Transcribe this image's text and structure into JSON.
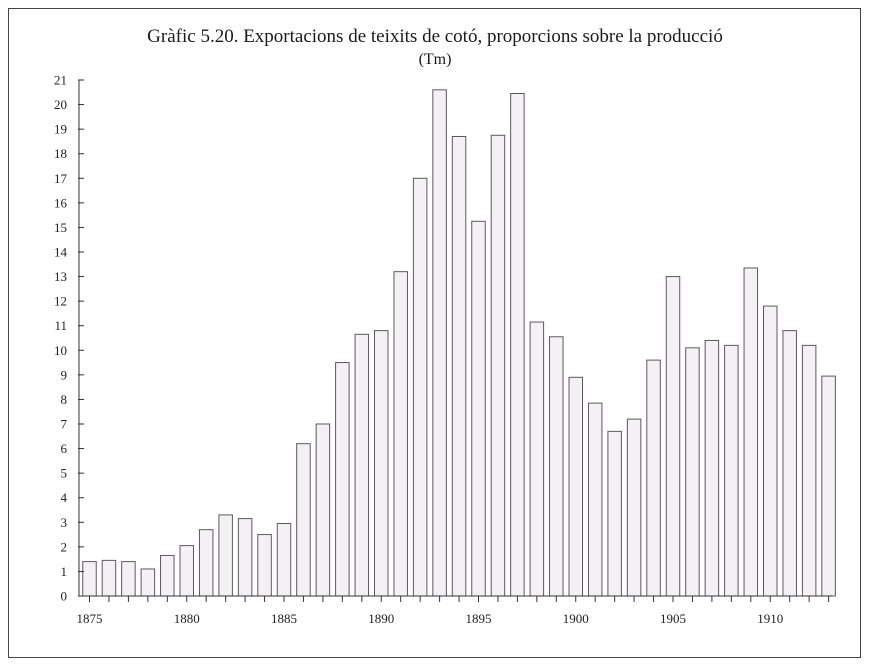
{
  "chart_data": {
    "type": "bar",
    "title": "Gràfic 5.20. Exportacions de teixits de cotó, proporcions sobre la producció",
    "subtitle": "(Tm)",
    "xlabel": "",
    "ylabel": "",
    "ylim": [
      0,
      21
    ],
    "yticks": [
      0,
      1,
      2,
      3,
      4,
      5,
      6,
      7,
      8,
      9,
      10,
      11,
      12,
      13,
      14,
      15,
      16,
      17,
      18,
      19,
      20,
      21
    ],
    "xtick_labels": [
      "1875",
      "1880",
      "1885",
      "1890",
      "1895",
      "1900",
      "1905",
      "1910"
    ],
    "grid": false,
    "categories": [
      1875,
      1876,
      1877,
      1878,
      1879,
      1880,
      1881,
      1882,
      1883,
      1884,
      1885,
      1886,
      1887,
      1888,
      1889,
      1890,
      1891,
      1892,
      1893,
      1894,
      1895,
      1896,
      1897,
      1898,
      1899,
      1900,
      1901,
      1902,
      1903,
      1904,
      1905,
      1906,
      1907,
      1908,
      1909,
      1910,
      1911,
      1912,
      1913
    ],
    "values": [
      1.4,
      1.45,
      1.4,
      1.1,
      1.65,
      2.05,
      2.7,
      3.3,
      3.15,
      2.5,
      2.95,
      6.2,
      7.0,
      9.5,
      10.65,
      10.8,
      13.2,
      17.0,
      20.6,
      18.7,
      15.25,
      18.75,
      20.45,
      11.15,
      10.55,
      8.9,
      7.85,
      6.7,
      7.2,
      9.6,
      13.0,
      10.1,
      10.4,
      10.2,
      13.35,
      11.8,
      10.8,
      10.2,
      8.95
    ]
  }
}
